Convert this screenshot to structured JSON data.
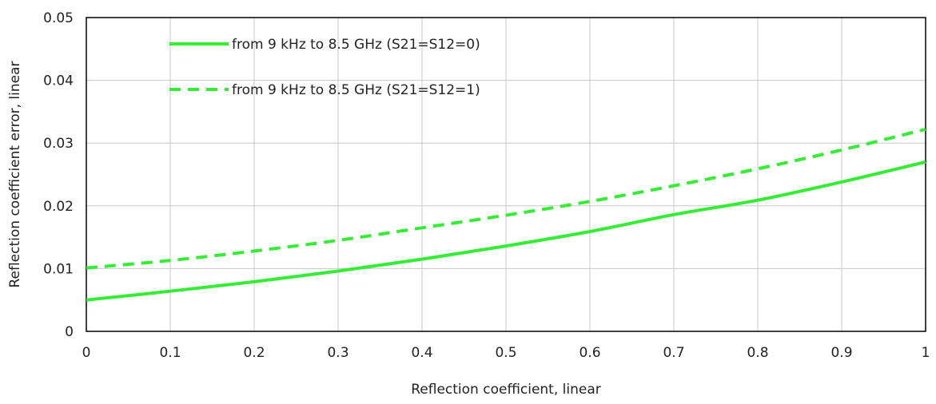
{
  "chart_data": {
    "type": "line",
    "xlabel": "Reflection coefficient, linear",
    "ylabel": "Reflection coefficient error, linear",
    "xlim": [
      0,
      1
    ],
    "ylim": [
      0,
      0.05
    ],
    "x_ticks": [
      "0",
      "0.1",
      "0.2",
      "0.3",
      "0.4",
      "0.5",
      "0.6",
      "0.7",
      "0.8",
      "0.9",
      "1"
    ],
    "y_ticks": [
      "0",
      "0.01",
      "0.02",
      "0.03",
      "0.04",
      "0.05"
    ],
    "grid": true,
    "legend_position": "top-left",
    "x": [
      0,
      0.1,
      0.2,
      0.3,
      0.4,
      0.5,
      0.6,
      0.7,
      0.8,
      0.9,
      1.0
    ],
    "series": [
      {
        "name": "from 9 kHz to 8.5 GHz (S21=S12=0)",
        "style": "solid",
        "color": "#33ee33",
        "values": [
          0.005,
          0.0064,
          0.0079,
          0.0096,
          0.0115,
          0.0136,
          0.0159,
          0.0186,
          0.0209,
          0.0238,
          0.027
        ]
      },
      {
        "name": "from 9 kHz to 8.5 GHz (S21=S12=1)",
        "style": "dashed",
        "color": "#33ee33",
        "values": [
          0.0101,
          0.0113,
          0.0128,
          0.0145,
          0.0165,
          0.0185,
          0.0207,
          0.0232,
          0.0259,
          0.0289,
          0.0322
        ]
      }
    ]
  }
}
